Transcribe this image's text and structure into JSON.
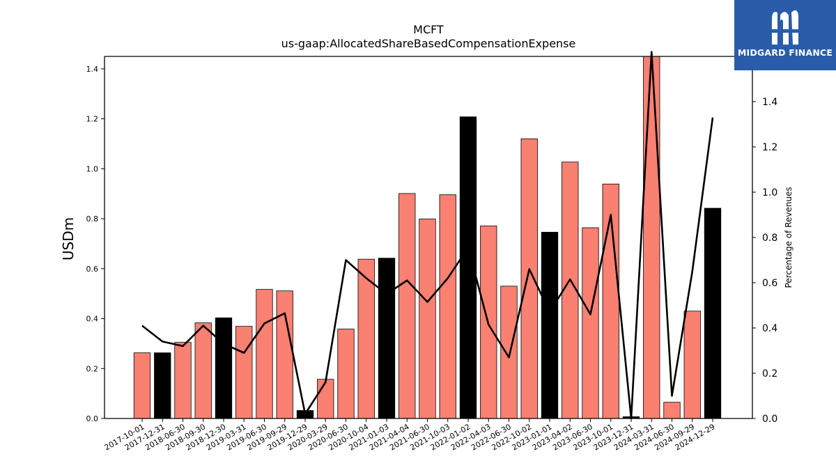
{
  "brand": {
    "name": "MIDGARD FINANCE",
    "bg_color": "#2a5caa"
  },
  "chart_data": {
    "type": "bar",
    "title": "MCFT",
    "subtitle": "us-gaap:AllocatedShareBasedCompensationExpense",
    "ylabel": "USDm",
    "y2label": "Percentage of Revenues",
    "ylim": [
      0,
      1.45
    ],
    "y2lim": [
      0,
      1.6
    ],
    "yticks": [
      "0.0",
      "0.2",
      "0.4",
      "0.6",
      "0.8",
      "1.0",
      "1.2",
      "1.4"
    ],
    "y2ticks": [
      "0.0",
      "0.2",
      "0.4",
      "0.6",
      "0.8",
      "1.0",
      "1.2",
      "1.4"
    ],
    "grid": false,
    "categories": [
      "2017-10-01",
      "2017-12-31",
      "2018-06-30",
      "2018-09-30",
      "2018-12-30",
      "2019-03-31",
      "2019-06-30",
      "2019-09-29",
      "2019-12-29",
      "2020-03-29",
      "2020-06-30",
      "2020-10-04",
      "2021-01-03",
      "2021-04-04",
      "2021-06-30",
      "2021-10-03",
      "2022-01-02",
      "2022-04-03",
      "2022-06-30",
      "2022-10-02",
      "2023-01-01",
      "2023-04-02",
      "2023-06-30",
      "2023-10-01",
      "2023-12-31",
      "2024-03-31",
      "2024-06-30",
      "2024-09-29",
      "2024-12-29"
    ],
    "series": [
      {
        "type": "bar",
        "axis": "left",
        "values": [
          0.263,
          0.263,
          0.305,
          0.383,
          0.403,
          0.369,
          0.517,
          0.511,
          0.032,
          0.157,
          0.358,
          0.638,
          0.642,
          0.901,
          0.799,
          0.896,
          1.208,
          0.771,
          0.53,
          1.12,
          0.746,
          1.027,
          0.764,
          0.939,
          0.007,
          1.49,
          0.065,
          0.43,
          0.842
        ],
        "highlight": [
          false,
          true,
          false,
          false,
          true,
          false,
          false,
          false,
          true,
          false,
          false,
          false,
          true,
          false,
          false,
          false,
          true,
          false,
          false,
          false,
          true,
          false,
          false,
          false,
          true,
          false,
          false,
          false,
          true
        ],
        "color": "#fa8072",
        "highlight_color": "#000000"
      },
      {
        "type": "line",
        "axis": "right",
        "values": [
          0.41,
          0.34,
          0.32,
          0.41,
          0.33,
          0.29,
          0.42,
          0.465,
          0.02,
          0.16,
          0.7,
          0.62,
          0.55,
          0.61,
          0.515,
          0.62,
          0.755,
          0.415,
          0.27,
          0.66,
          0.47,
          0.615,
          0.46,
          0.9,
          0.0,
          1.62,
          0.1,
          0.65,
          1.33
        ],
        "color": "#000000"
      }
    ]
  }
}
